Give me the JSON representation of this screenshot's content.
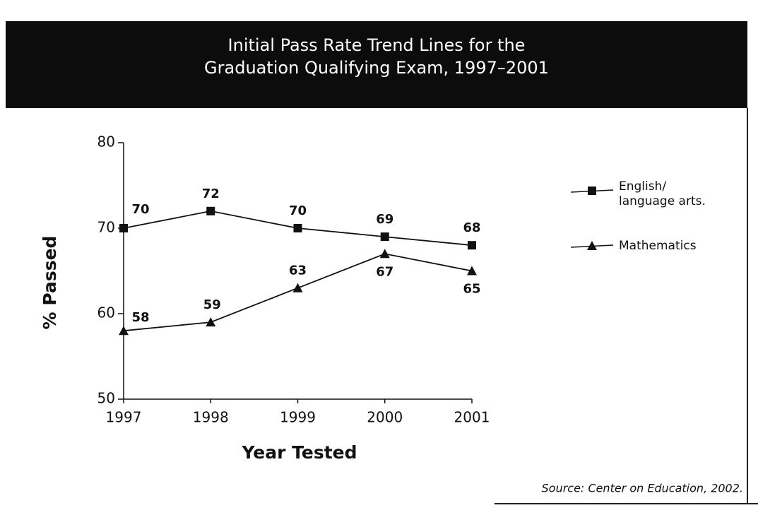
{
  "chart_data": {
    "type": "line",
    "title": "Initial Pass Rate Trend Lines for the\nGraduation Qualifying Exam, 1997–2001",
    "x_label": "Year Tested",
    "y_label": "% Passed",
    "categories": [
      "1997",
      "1998",
      "1999",
      "2000",
      "2001"
    ],
    "series": [
      {
        "name": "English/\nlanguage arts.",
        "color": "#111111",
        "marker": "square",
        "values": [
          70,
          72,
          70,
          69,
          68
        ]
      },
      {
        "name": "Mathematics",
        "color": "#111111",
        "marker": "triangle",
        "values": [
          58,
          59,
          63,
          67,
          65
        ]
      }
    ],
    "ylim": [
      50,
      80
    ],
    "yticks": [
      50,
      60,
      70,
      80
    ],
    "grid": false,
    "legend": "right",
    "source": "Source: Center on Education, 2002."
  }
}
